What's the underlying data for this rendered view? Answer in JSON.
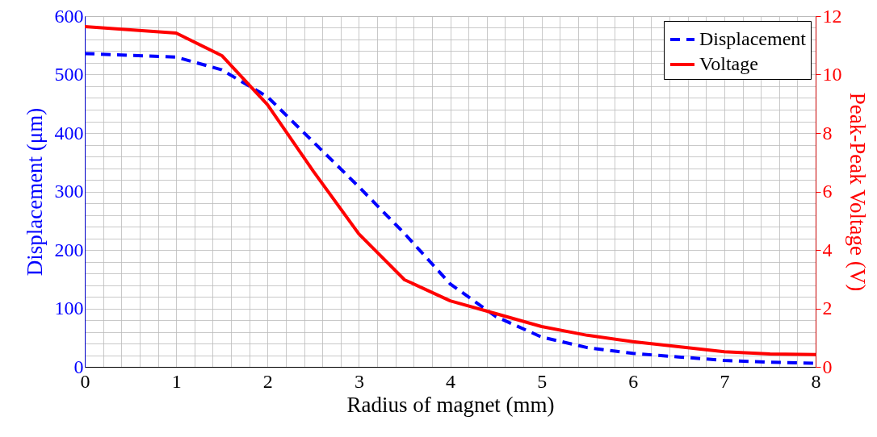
{
  "chart_data": {
    "type": "line",
    "x": [
      0,
      1,
      1.5,
      2,
      2.5,
      3,
      3.5,
      4,
      4.5,
      5,
      5.5,
      6,
      6.5,
      7,
      7.5,
      8
    ],
    "xlabel": "Radius of magnet (mm)",
    "ylabel": "Displacement (μm)",
    "y2label": "Peak-Peak Voltage (V)",
    "xlim": [
      0,
      8
    ],
    "xticks": [
      0,
      1,
      2,
      3,
      4,
      5,
      6,
      7,
      8
    ],
    "ylim": [
      0,
      600
    ],
    "yticks": [
      0,
      100,
      200,
      300,
      400,
      500,
      600
    ],
    "y2lim": [
      0,
      12
    ],
    "y2ticks": [
      0,
      2,
      4,
      6,
      8,
      10,
      12
    ],
    "grid": true,
    "legend": "top right",
    "series": [
      {
        "name": "Displacement",
        "color": "#0000ff",
        "line_style": "dashed",
        "values": [
          536,
          530,
          508,
          462,
          385,
          308,
          228,
          142,
          86,
          51,
          33,
          23,
          17,
          11,
          8,
          6
        ]
      },
      {
        "name": "Voltage",
        "color": "#ff0000",
        "line_style": "solid",
        "axis": "y2",
        "values": [
          11.64,
          11.42,
          10.65,
          8.97,
          6.7,
          4.55,
          2.98,
          2.26,
          1.82,
          1.38,
          1.08,
          0.86,
          0.69,
          0.52,
          0.44,
          0.42
        ]
      }
    ]
  }
}
